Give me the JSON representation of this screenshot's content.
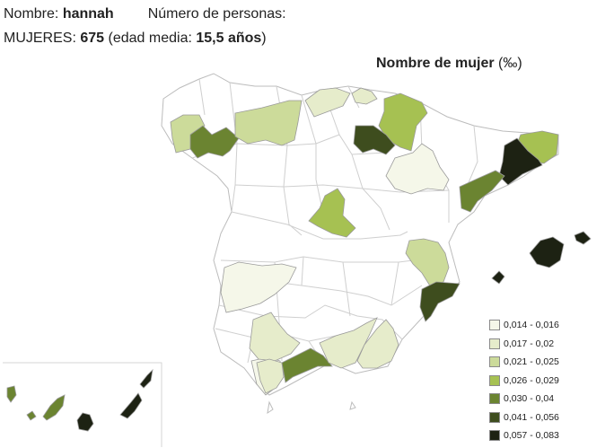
{
  "info": {
    "name_label": "Nombre:",
    "name_value": "hannah",
    "persons_label": "Número de personas:",
    "women_label": "MUJERES:",
    "women_count": "675",
    "avg_age_open": "(edad media:",
    "avg_age_value": "15,5 años",
    "avg_age_close": ")"
  },
  "map": {
    "title": "Nombre de mujer",
    "unit": "(‰)",
    "legend": [
      {
        "label": "0,014 - 0,016",
        "color": "#f5f7e9"
      },
      {
        "label": "0,017 - 0,02",
        "color": "#e6eccb"
      },
      {
        "label": "0,021 - 0,025",
        "color": "#ccdb9a"
      },
      {
        "label": "0,026 - 0,029",
        "color": "#a6c152"
      },
      {
        "label": "0,030 - 0,04",
        "color": "#6b8431"
      },
      {
        "label": "0,041 - 0,056",
        "color": "#3e4d1e"
      },
      {
        "label": "0,057 - 0,083",
        "color": "#1d2213"
      }
    ],
    "regions": [
      {
        "name": "a-coruna",
        "level": 2
      },
      {
        "name": "lugo",
        "level": 4
      },
      {
        "name": "asturias",
        "level": 2
      },
      {
        "name": "cantabria",
        "level": 1
      },
      {
        "name": "bizkaia",
        "level": 1
      },
      {
        "name": "navarra",
        "level": 3
      },
      {
        "name": "la-rioja",
        "level": 5
      },
      {
        "name": "huesca",
        "level": 0
      },
      {
        "name": "girona",
        "level": 3
      },
      {
        "name": "barcelona",
        "level": 6
      },
      {
        "name": "tarragona",
        "level": 4
      },
      {
        "name": "madrid",
        "level": 3
      },
      {
        "name": "valencia",
        "level": 2
      },
      {
        "name": "alicante",
        "level": 5
      },
      {
        "name": "badajoz",
        "level": 0
      },
      {
        "name": "huelva",
        "level": 0
      },
      {
        "name": "sevilla",
        "level": 1
      },
      {
        "name": "cadiz",
        "level": 1
      },
      {
        "name": "malaga",
        "level": 4
      },
      {
        "name": "granada",
        "level": 1
      },
      {
        "name": "almeria",
        "level": 1
      },
      {
        "name": "mallorca",
        "level": 6
      },
      {
        "name": "menorca",
        "level": 6
      },
      {
        "name": "ibiza",
        "level": 6
      },
      {
        "name": "tenerife",
        "level": 4
      },
      {
        "name": "gran-canaria",
        "level": 6
      },
      {
        "name": "fuerteventura",
        "level": 6
      },
      {
        "name": "lanzarote",
        "level": 6
      },
      {
        "name": "la-palma",
        "level": 4
      },
      {
        "name": "la-gomera",
        "level": 4
      }
    ]
  }
}
